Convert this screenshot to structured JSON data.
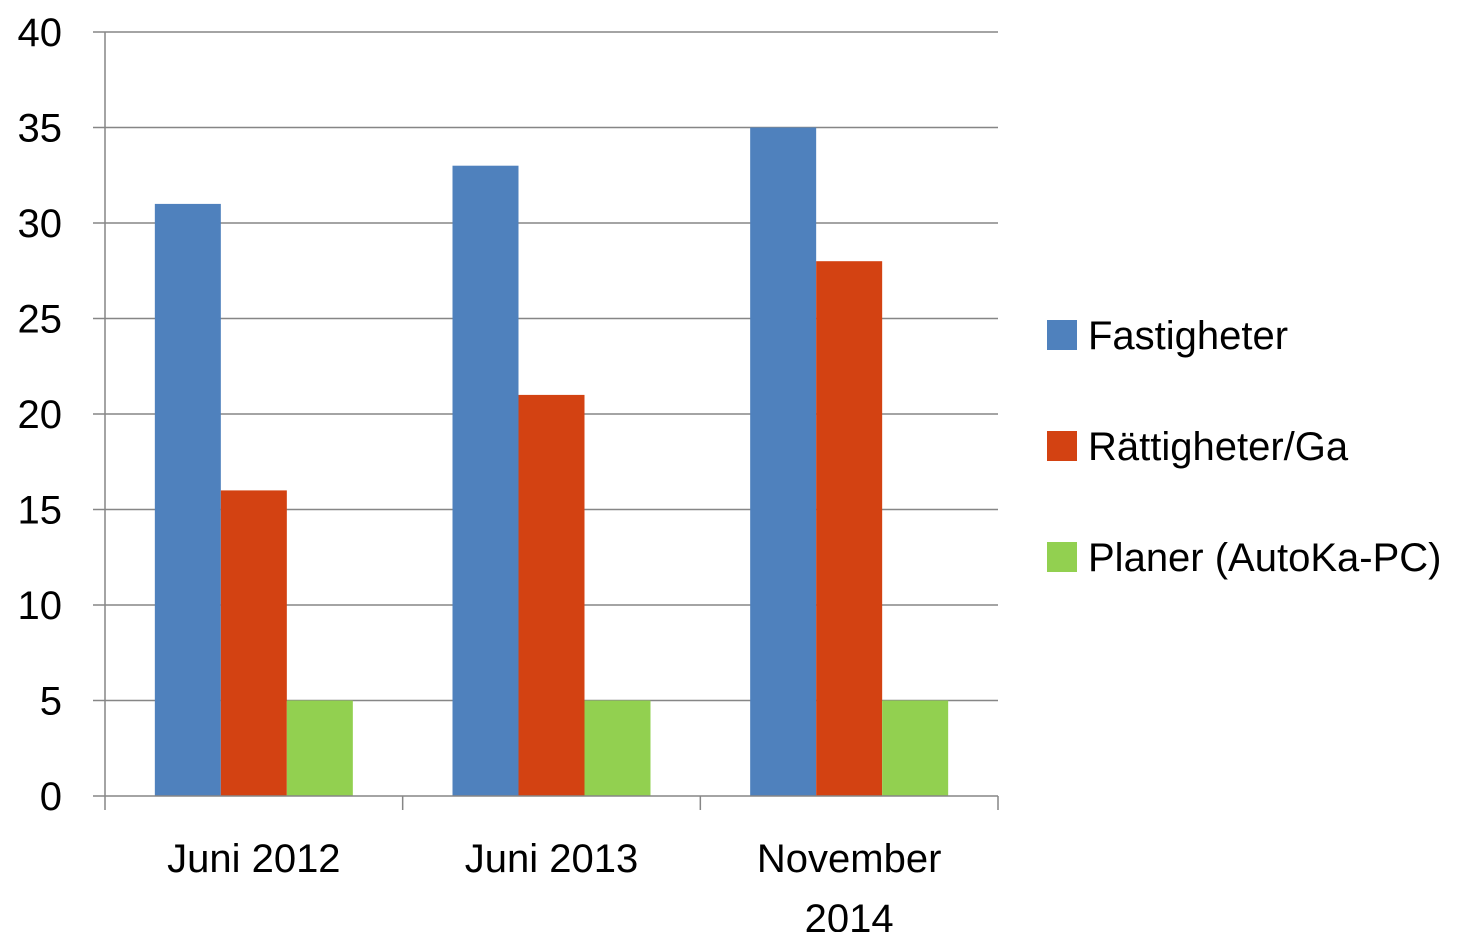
{
  "chart_data": {
    "type": "bar",
    "categories": [
      [
        "Juni 2012"
      ],
      [
        "Juni 2013"
      ],
      [
        "November",
        "2014"
      ]
    ],
    "series": [
      {
        "name": "Fastigheter",
        "color": "#4f81bd",
        "values": [
          31,
          33,
          35
        ]
      },
      {
        "name": "Rättigheter/Ga",
        "color": "#d34212",
        "values": [
          16,
          21,
          28
        ]
      },
      {
        "name": "Planer (AutoKa-PC)",
        "color": "#92d050",
        "values": [
          5,
          5,
          5
        ]
      }
    ],
    "ylim": [
      0,
      40
    ],
    "yticks": [
      0,
      5,
      10,
      15,
      20,
      25,
      30,
      35,
      40
    ],
    "grid": true,
    "legend_position": "right",
    "axis_color": "#868686"
  }
}
